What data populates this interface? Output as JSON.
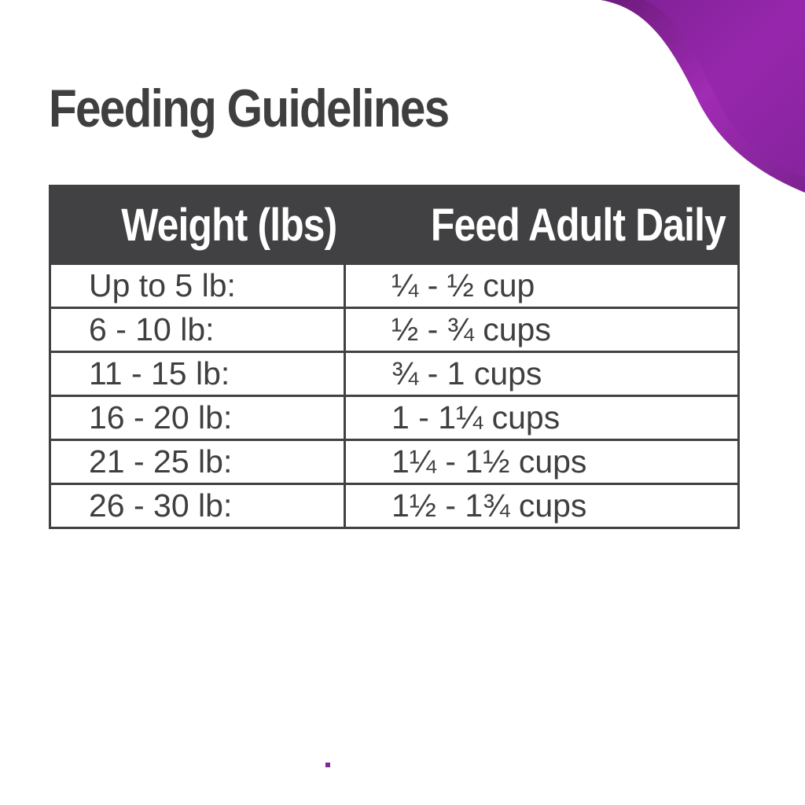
{
  "title": "Feeding Guidelines",
  "table": {
    "headers": [
      "Weight (lbs)",
      "Feed Adult Daily"
    ],
    "rows": [
      {
        "weight": "Up to 5 lb:",
        "feed": "¼ - ½ cup"
      },
      {
        "weight": "6 - 10 lb:",
        "feed": "½ - ¾ cups"
      },
      {
        "weight": "11 - 15 lb:",
        "feed": "¾ - 1 cups"
      },
      {
        "weight": "16 - 20 lb:",
        "feed": "1 - 1¼ cups"
      },
      {
        "weight": "21 - 25 lb:",
        "feed": "1¼ - 1½ cups"
      },
      {
        "weight": "26 - 30 lb:",
        "feed": "1½ - 1¾ cups"
      }
    ]
  },
  "colors": {
    "accent": "#9b27b0",
    "header_bg": "#414042",
    "text": "#3f3f3f"
  }
}
